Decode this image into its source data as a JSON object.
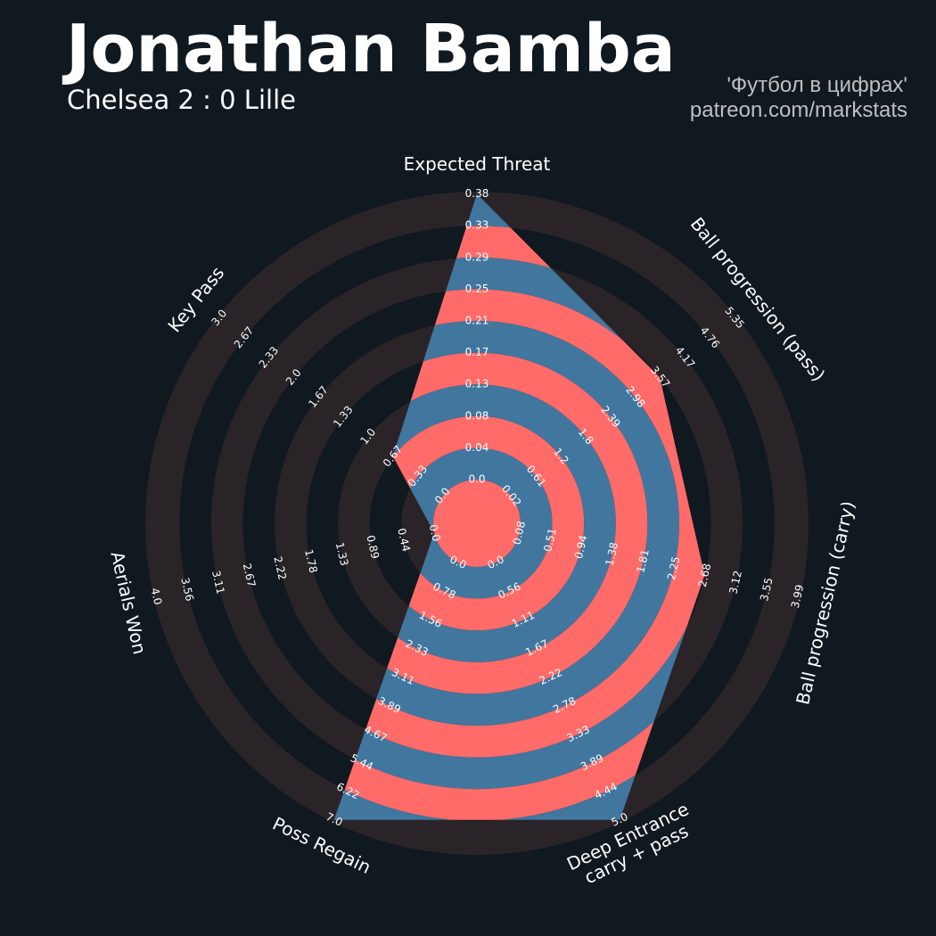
{
  "header": {
    "title": "Jonathan Bamba",
    "subtitle": "Chelsea 2 : 0 Lille",
    "credit_line1": "'Футбол в цифрах'",
    "credit_line2": "patreon.com/markstats"
  },
  "colors": {
    "background": "#101820",
    "ring_dark": "#2a2428",
    "ring_light": "#101820",
    "band_a": "#ff6b68",
    "band_b": "#41769f"
  },
  "chart_data": {
    "type": "radar",
    "title": "Jonathan Bamba",
    "subtitle": "Chelsea 2 : 0 Lille",
    "params": [
      {
        "label": "Expected Threat",
        "min": 0.0,
        "max": 0.38,
        "value": 0.38,
        "ticks": [
          "0.0",
          "0.04",
          "0.08",
          "0.13",
          "0.17",
          "0.21",
          "0.25",
          "0.29",
          "0.33",
          "0.38"
        ]
      },
      {
        "label": "Ball progression (pass)",
        "min": 0.02,
        "max": 5.35,
        "value": 3.57,
        "ticks": [
          "0.02",
          "0.61",
          "1.2",
          "1.8",
          "2.39",
          "2.98",
          "3.57",
          "4.17",
          "4.76",
          "5.35"
        ]
      },
      {
        "label": "Ball progression (carry)",
        "min": 0.08,
        "max": 3.99,
        "value": 2.68,
        "ticks": [
          "0.08",
          "0.51",
          "0.94",
          "1.38",
          "1.81",
          "2.25",
          "2.68",
          "3.12",
          "3.55",
          "3.99"
        ]
      },
      {
        "label": "Deep Entrance\ncarry + pass",
        "min": 0.0,
        "max": 5.0,
        "value": 5.0,
        "ticks": [
          "0.0",
          "0.56",
          "1.11",
          "1.67",
          "2.22",
          "2.78",
          "3.33",
          "3.89",
          "4.44",
          "5.0"
        ]
      },
      {
        "label": "Poss Regain",
        "min": 0.0,
        "max": 7.0,
        "value": 7.0,
        "ticks": [
          "0.0",
          "0.78",
          "1.56",
          "2.33",
          "3.11",
          "3.89",
          "4.67",
          "5.44",
          "6.22",
          "7.0"
        ]
      },
      {
        "label": "Aerials Won",
        "min": 0.0,
        "max": 4.0,
        "value": 0.0,
        "ticks": [
          "0.0",
          "0.44",
          "0.89",
          "1.33",
          "1.78",
          "2.22",
          "2.67",
          "3.11",
          "3.56",
          "4.0"
        ]
      },
      {
        "label": "Key Pass",
        "min": 0.0,
        "max": 3.0,
        "value": 0.67,
        "ticks": [
          "0.0",
          "0.33",
          "0.67",
          "1.0",
          "1.33",
          "1.67",
          "2.0",
          "2.33",
          "2.67",
          "3.0"
        ]
      }
    ]
  }
}
